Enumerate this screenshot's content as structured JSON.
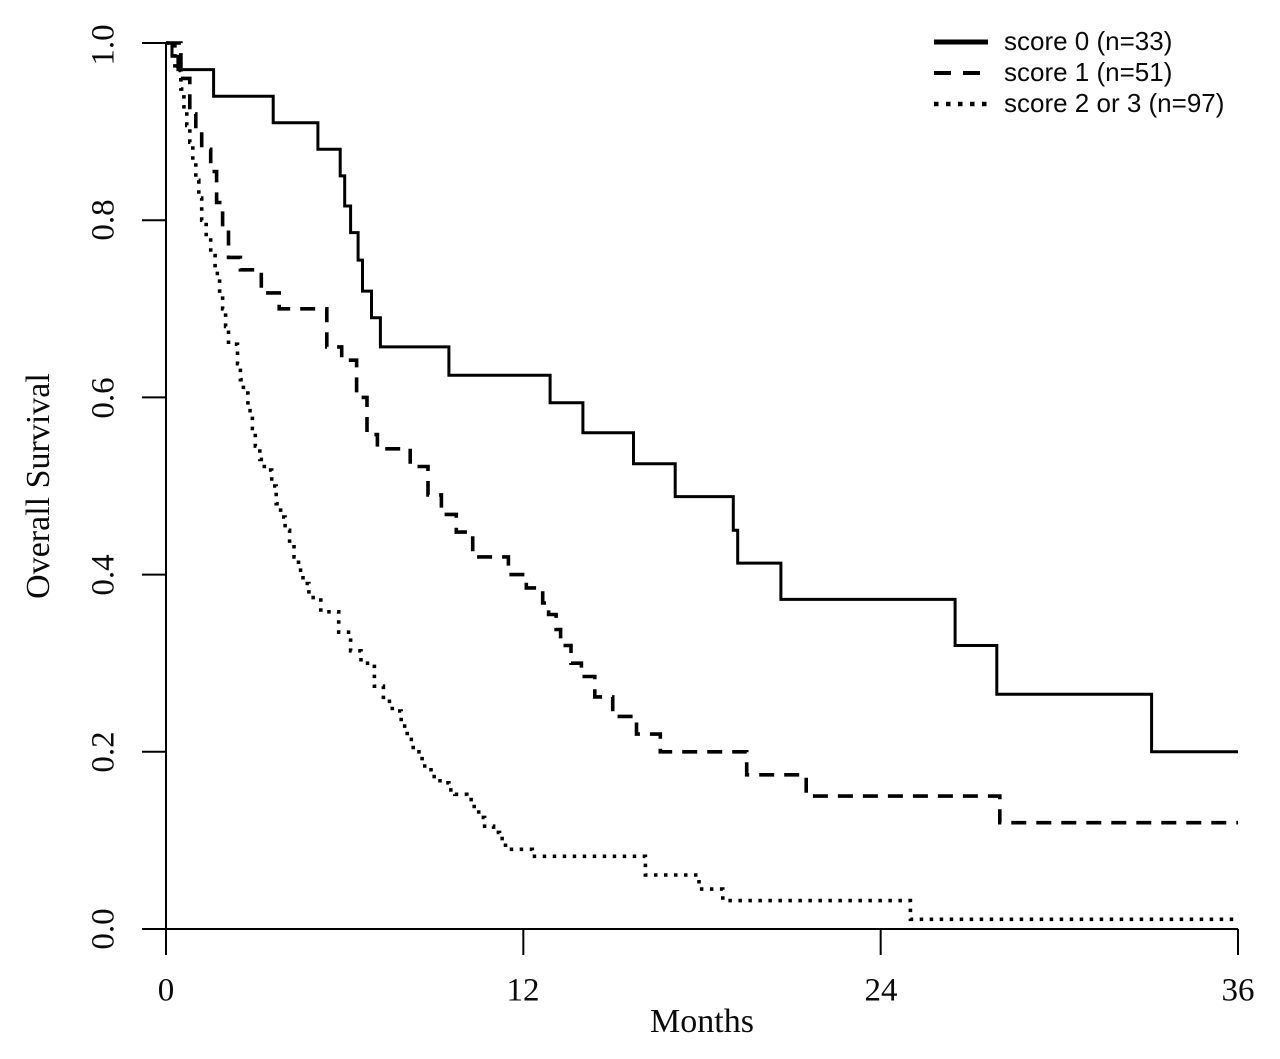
{
  "figure": {
    "background": "#ffffff",
    "axis_color": "#000000"
  },
  "chart_data": {
    "type": "line",
    "subtype": "kaplan-meier-step-curves",
    "title": "",
    "xlabel": "Months",
    "ylabel": "Overall Survival",
    "xlim": [
      0,
      36
    ],
    "ylim": [
      0.0,
      1.0
    ],
    "grid": false,
    "legend_position": "top-right",
    "x_ticks": [
      {
        "value": 0,
        "label": "0"
      },
      {
        "value": 12,
        "label": "12"
      },
      {
        "value": 24,
        "label": "24"
      },
      {
        "value": 36,
        "label": "36"
      }
    ],
    "y_ticks": [
      {
        "value": 0.0,
        "label": "0.0"
      },
      {
        "value": 0.2,
        "label": "0.2"
      },
      {
        "value": 0.4,
        "label": "0.4"
      },
      {
        "value": 0.6,
        "label": "0.6"
      },
      {
        "value": 0.8,
        "label": "0.8"
      },
      {
        "value": 1.0,
        "label": "1.0"
      }
    ],
    "series": [
      {
        "name": "score 0 (n=33)",
        "style": "solid",
        "color": "#000000",
        "start": [
          0,
          1.0
        ],
        "points": [
          [
            0.2,
            0.985
          ],
          [
            0.4,
            0.97
          ],
          [
            1.6,
            0.94
          ],
          [
            3.6,
            0.91
          ],
          [
            5.1,
            0.88
          ],
          [
            5.85,
            0.85
          ],
          [
            6.0,
            0.816
          ],
          [
            6.2,
            0.786
          ],
          [
            6.45,
            0.755
          ],
          [
            6.6,
            0.72
          ],
          [
            6.9,
            0.69
          ],
          [
            7.2,
            0.657
          ],
          [
            9.5,
            0.625
          ],
          [
            12.9,
            0.594
          ],
          [
            14.0,
            0.56
          ],
          [
            15.7,
            0.525
          ],
          [
            17.1,
            0.488
          ],
          [
            19.05,
            0.45
          ],
          [
            19.2,
            0.413
          ],
          [
            20.65,
            0.372
          ],
          [
            26.5,
            0.32
          ],
          [
            27.9,
            0.265
          ],
          [
            33.1,
            0.2
          ]
        ]
      },
      {
        "name": "score 1 (n=51)",
        "style": "dashed",
        "color": "#000000",
        "start": [
          0,
          1.0
        ],
        "points": [
          [
            0.5,
            0.96
          ],
          [
            0.8,
            0.92
          ],
          [
            1.0,
            0.9
          ],
          [
            1.2,
            0.88
          ],
          [
            1.5,
            0.855
          ],
          [
            1.7,
            0.82
          ],
          [
            1.9,
            0.79
          ],
          [
            2.1,
            0.758
          ],
          [
            2.5,
            0.744
          ],
          [
            3.2,
            0.718
          ],
          [
            3.8,
            0.7
          ],
          [
            5.4,
            0.657
          ],
          [
            5.9,
            0.642
          ],
          [
            6.4,
            0.6
          ],
          [
            6.75,
            0.558
          ],
          [
            7.1,
            0.542
          ],
          [
            8.2,
            0.522
          ],
          [
            8.8,
            0.49
          ],
          [
            9.25,
            0.468
          ],
          [
            9.75,
            0.448
          ],
          [
            10.3,
            0.42
          ],
          [
            11.5,
            0.4
          ],
          [
            12.1,
            0.385
          ],
          [
            12.65,
            0.368
          ],
          [
            12.85,
            0.355
          ],
          [
            13.1,
            0.338
          ],
          [
            13.25,
            0.32
          ],
          [
            13.6,
            0.3
          ],
          [
            13.95,
            0.285
          ],
          [
            14.4,
            0.262
          ],
          [
            15.0,
            0.24
          ],
          [
            15.8,
            0.22
          ],
          [
            16.6,
            0.2
          ],
          [
            19.5,
            0.174
          ],
          [
            21.5,
            0.15
          ],
          [
            28.0,
            0.12
          ]
        ]
      },
      {
        "name": "score 2 or 3 (n=97)",
        "style": "dotted",
        "color": "#000000",
        "start": [
          0,
          1.0
        ],
        "points": [
          [
            0.3,
            0.969
          ],
          [
            0.5,
            0.948
          ],
          [
            0.6,
            0.928
          ],
          [
            0.7,
            0.907
          ],
          [
            0.8,
            0.888
          ],
          [
            0.9,
            0.868
          ],
          [
            1.0,
            0.845
          ],
          [
            1.1,
            0.825
          ],
          [
            1.2,
            0.8
          ],
          [
            1.35,
            0.78
          ],
          [
            1.5,
            0.76
          ],
          [
            1.65,
            0.74
          ],
          [
            1.8,
            0.72
          ],
          [
            1.9,
            0.7
          ],
          [
            2.0,
            0.68
          ],
          [
            2.1,
            0.66
          ],
          [
            2.4,
            0.638
          ],
          [
            2.5,
            0.62
          ],
          [
            2.6,
            0.605
          ],
          [
            2.75,
            0.585
          ],
          [
            2.9,
            0.565
          ],
          [
            3.0,
            0.545
          ],
          [
            3.15,
            0.53
          ],
          [
            3.3,
            0.518
          ],
          [
            3.55,
            0.5
          ],
          [
            3.7,
            0.48
          ],
          [
            3.85,
            0.465
          ],
          [
            4.0,
            0.45
          ],
          [
            4.15,
            0.435
          ],
          [
            4.3,
            0.42
          ],
          [
            4.45,
            0.405
          ],
          [
            4.6,
            0.39
          ],
          [
            4.8,
            0.374
          ],
          [
            5.2,
            0.358
          ],
          [
            5.8,
            0.335
          ],
          [
            6.2,
            0.314
          ],
          [
            6.55,
            0.3
          ],
          [
            7.0,
            0.274
          ],
          [
            7.3,
            0.257
          ],
          [
            7.6,
            0.246
          ],
          [
            7.9,
            0.229
          ],
          [
            8.1,
            0.214
          ],
          [
            8.3,
            0.2
          ],
          [
            8.6,
            0.184
          ],
          [
            8.9,
            0.172
          ],
          [
            9.2,
            0.165
          ],
          [
            9.5,
            0.157
          ],
          [
            9.7,
            0.152
          ],
          [
            10.1,
            0.146
          ],
          [
            10.35,
            0.135
          ],
          [
            10.5,
            0.126
          ],
          [
            10.7,
            0.116
          ],
          [
            11.0,
            0.109
          ],
          [
            11.2,
            0.102
          ],
          [
            11.4,
            0.09
          ],
          [
            12.3,
            0.082
          ],
          [
            16.1,
            0.061
          ],
          [
            17.9,
            0.045
          ],
          [
            18.7,
            0.032
          ],
          [
            25.0,
            0.011
          ]
        ]
      }
    ]
  }
}
